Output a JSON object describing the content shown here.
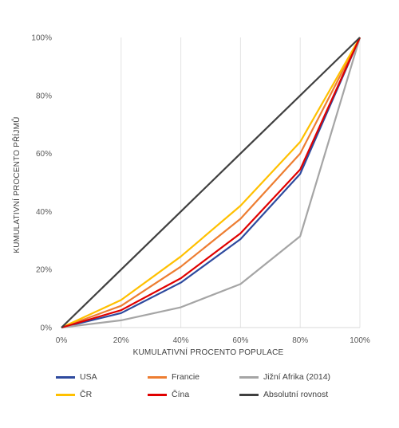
{
  "chart_data": {
    "type": "line",
    "title": "",
    "xlabel": "KUMULATIVNÍ PROCENTO POPULACE",
    "ylabel": "KUMULATIVNÍ PROCENTO PŘÍJMŮ",
    "xlim": [
      0,
      100
    ],
    "ylim": [
      0,
      100
    ],
    "x": [
      0,
      20,
      40,
      60,
      80,
      100
    ],
    "x_tick_labels": [
      "0%",
      "20%",
      "40%",
      "60%",
      "80%",
      "100%"
    ],
    "y_tick_labels": [
      "0%",
      "20%",
      "40%",
      "60%",
      "80%",
      "100%"
    ],
    "grid": "vertical",
    "legend_position": "bottom",
    "series": [
      {
        "name": "USA",
        "color": "#2e4a9e",
        "values": [
          0,
          5,
          15.5,
          30.5,
          53,
          100
        ]
      },
      {
        "name": "Francie",
        "color": "#ed7d31",
        "values": [
          0,
          7.5,
          21,
          37.5,
          60,
          100
        ]
      },
      {
        "name": "Jižní Afrika (2014)",
        "color": "#a5a5a5",
        "values": [
          0,
          2.5,
          7,
          15,
          31.5,
          100
        ]
      },
      {
        "name": "ČR",
        "color": "#ffc000",
        "values": [
          0,
          9.5,
          24.5,
          42,
          64,
          100
        ]
      },
      {
        "name": "Čína",
        "color": "#e00000",
        "values": [
          0,
          6,
          17,
          32.5,
          54.5,
          100
        ]
      },
      {
        "name": "Absolutní rovnost",
        "color": "#404040",
        "values": [
          0,
          20,
          40,
          60,
          80,
          100
        ]
      }
    ]
  }
}
